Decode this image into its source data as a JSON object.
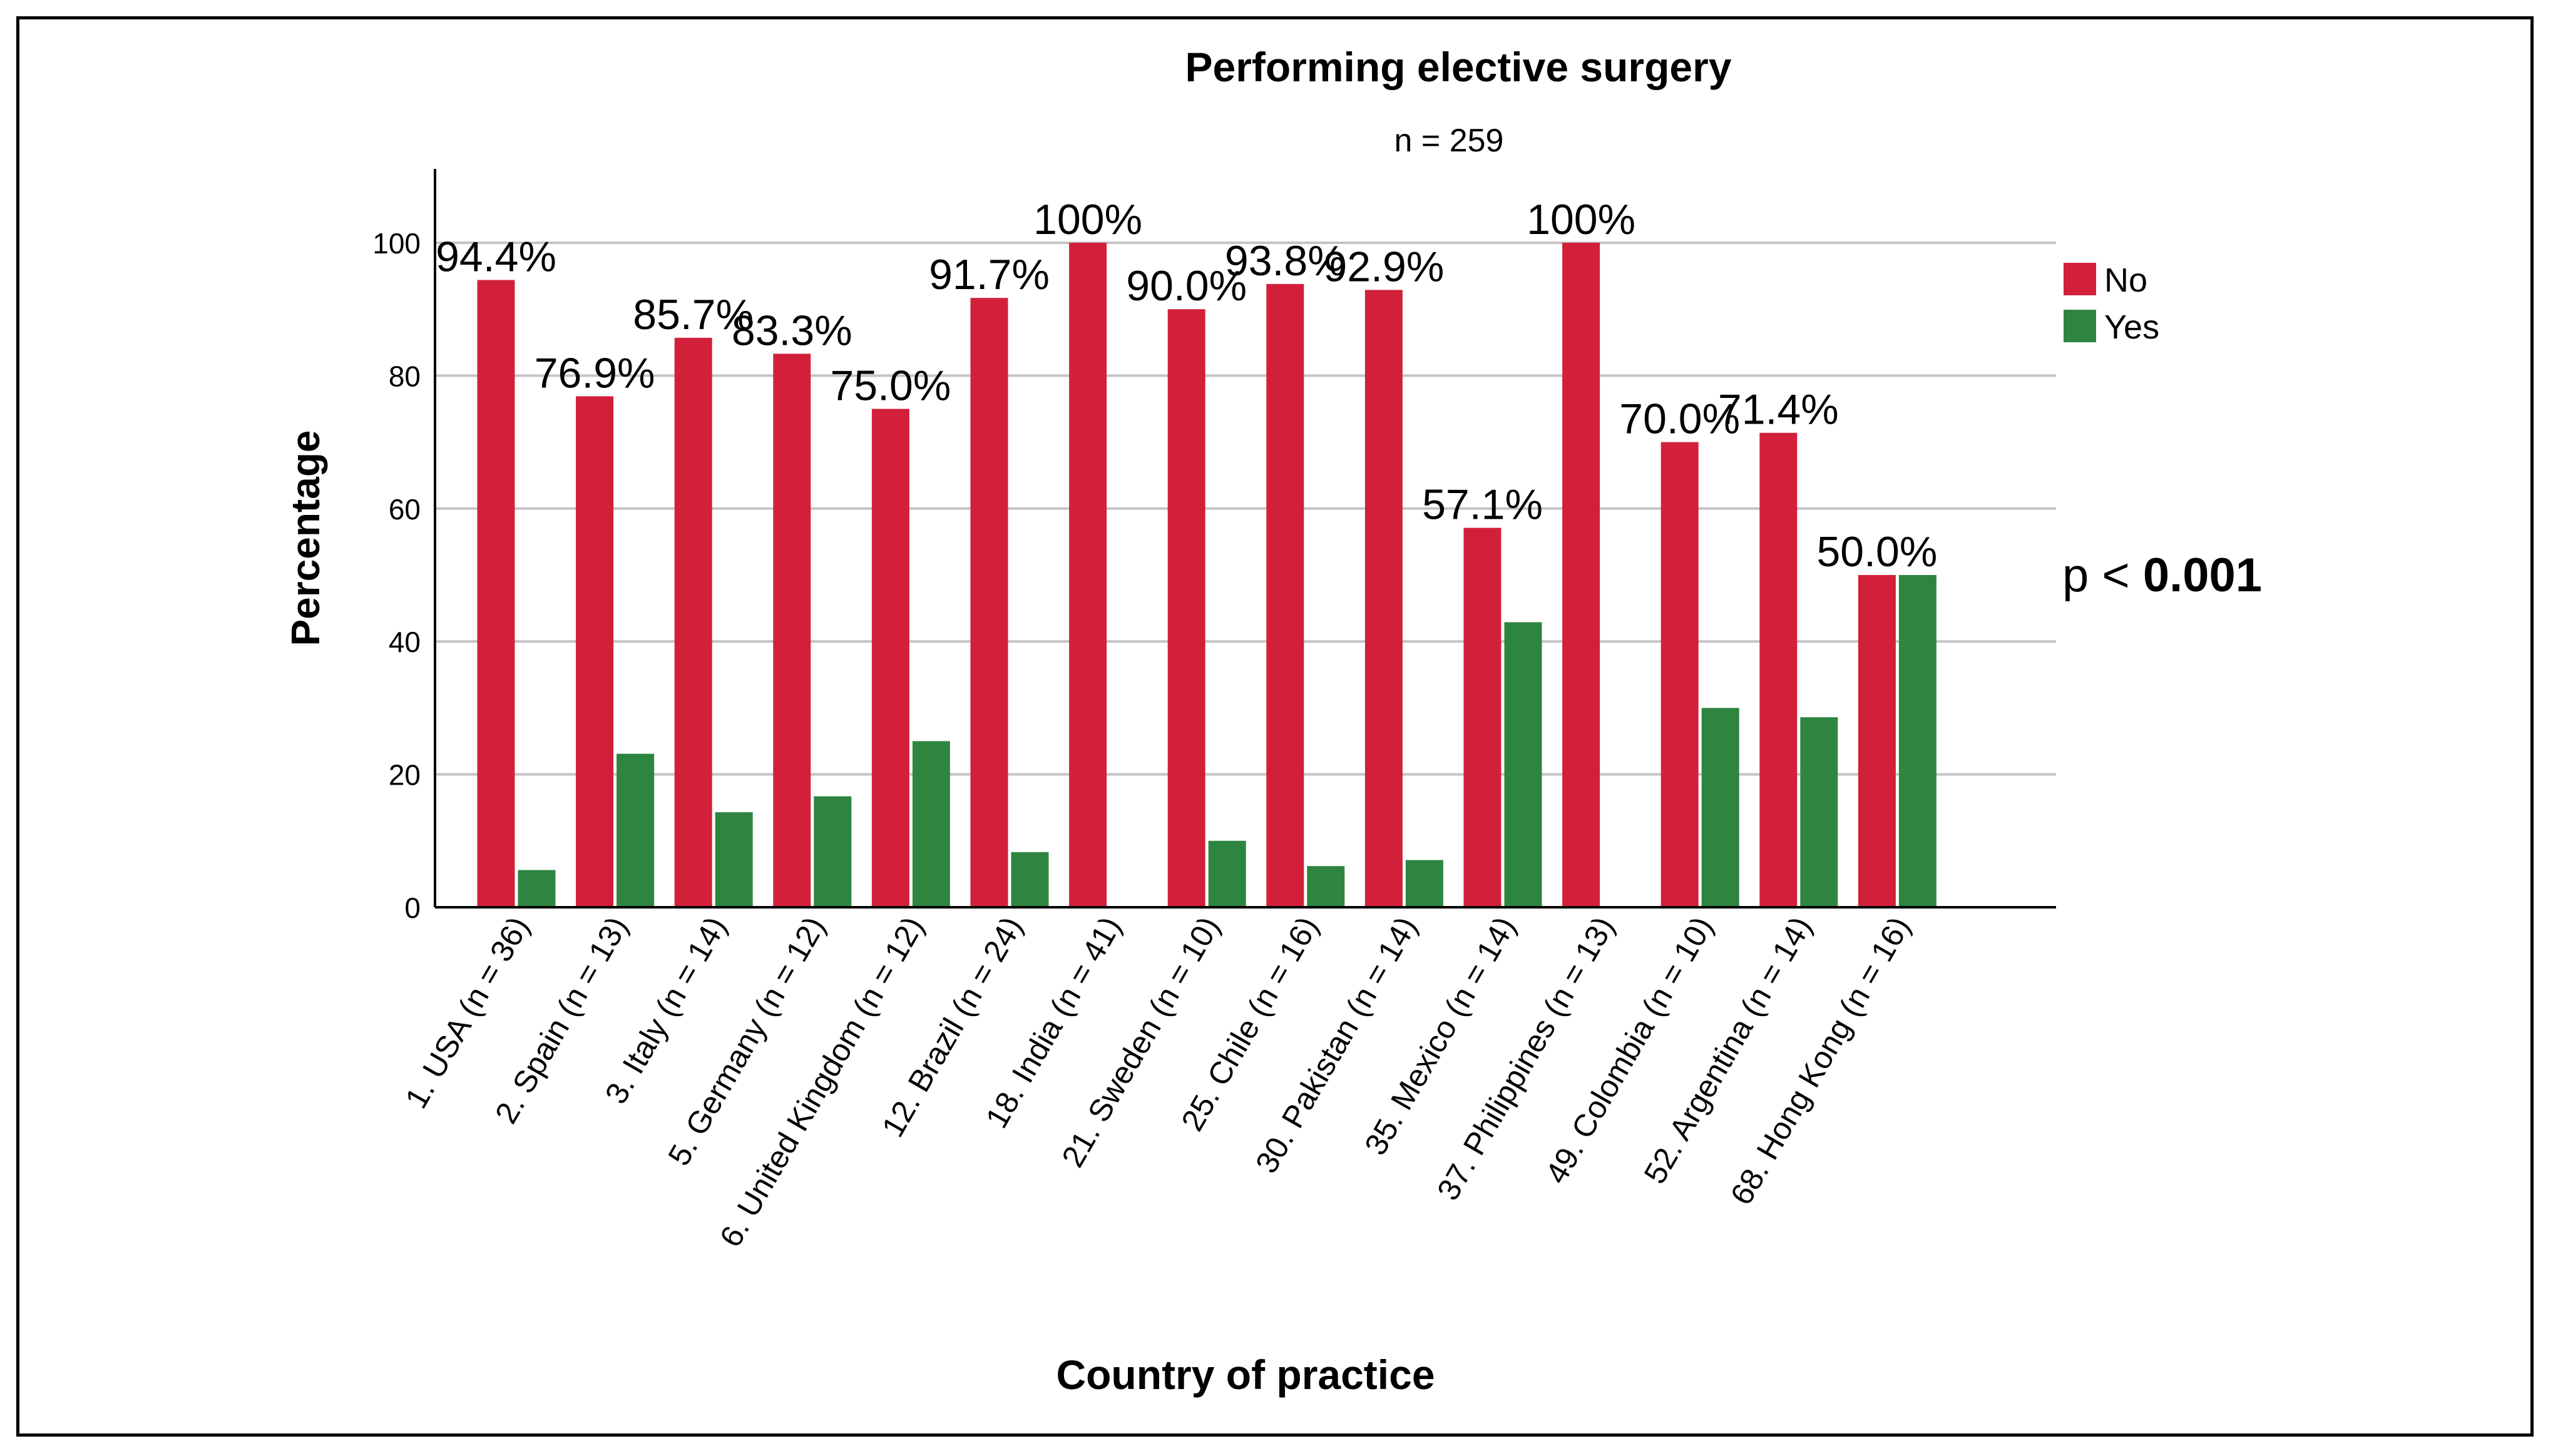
{
  "chart_data": {
    "type": "bar",
    "title": "Performing elective surgery",
    "subtitle": "n = 259",
    "xlabel": "Country of practice",
    "ylabel": "Percentage",
    "ylim": [
      0,
      110
    ],
    "yticks": [
      0,
      20,
      40,
      60,
      80,
      100
    ],
    "grid": true,
    "legend_position": "right",
    "annotation": {
      "prefix": "p < ",
      "value": "0.001"
    },
    "categories": [
      "1. USA (n = 36)",
      "2. Spain (n = 13)",
      "3. Italy (n = 14)",
      "5. Germany (n = 12)",
      "6. United Kingdom (n = 12)",
      "12. Brazil (n = 24)",
      "18. India (n = 41)",
      "21. Sweden (n = 10)",
      "25. Chile (n = 16)",
      "30. Pakistan (n = 14)",
      "35. Mexico (n = 14)",
      "37. Philippines (n = 13)",
      "49. Colombia (n = 10)",
      "52. Argentina (n = 14)",
      "68. Hong Kong (n = 16)"
    ],
    "series": [
      {
        "name": "No",
        "color": "#d2203a",
        "values": [
          94.4,
          76.9,
          85.7,
          83.3,
          75.0,
          91.7,
          100,
          90.0,
          93.8,
          92.9,
          57.1,
          100,
          70.0,
          71.4,
          50.0
        ],
        "labels": [
          "94.4%",
          "76.9%",
          "85.7%",
          "83.3%",
          "75.0%",
          "91.7%",
          "100%",
          "90.0%",
          "93.8%",
          "92.9%",
          "57.1%",
          "100%",
          "70.0%",
          "71.4%",
          "50.0%"
        ]
      },
      {
        "name": "Yes",
        "color": "#2e8540",
        "values": [
          5.6,
          23.1,
          14.3,
          16.7,
          25.0,
          8.3,
          0,
          10.0,
          6.2,
          7.1,
          42.9,
          0,
          30.0,
          28.6,
          50.0
        ]
      }
    ]
  }
}
